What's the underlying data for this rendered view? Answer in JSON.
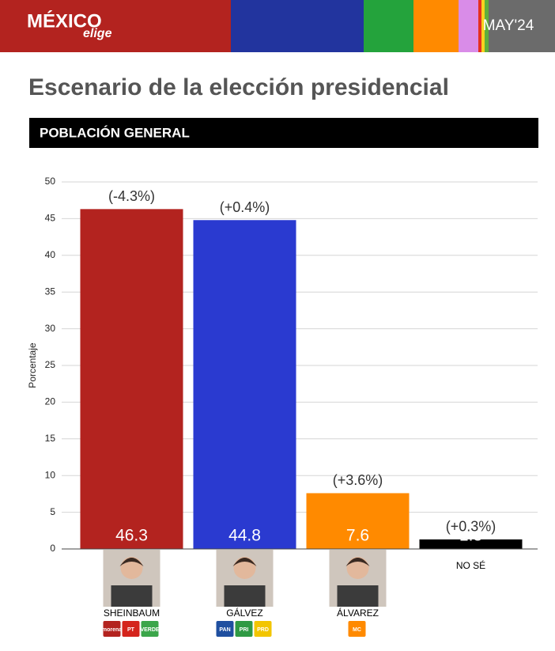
{
  "header": {
    "logo": "MÉXICO",
    "logo_sub": "elige",
    "date": "MAY'24"
  },
  "chart_data": {
    "type": "bar",
    "title": "Escenario de la elección presidencial",
    "subtitle": "POBLACIÓN GENERAL",
    "y_label": "Porcentaje",
    "categories": [
      "SHEINBAUM",
      "GÁLVEZ",
      "ÁLVAREZ",
      "NO SÉ"
    ],
    "values": [
      46.3,
      44.8,
      7.6,
      1.3
    ],
    "colors": [
      "#b3231f",
      "#2a3ad0",
      "#ff8a00",
      "#000000"
    ],
    "annotations": [
      "(-4.3%)",
      "(+0.4%)",
      "(+3.6%)",
      "(+0.3%)"
    ],
    "parties": [
      [
        "morena",
        "PT",
        "VERDE"
      ],
      [
        "PAN",
        "PRI",
        "PRD"
      ],
      [
        "MC"
      ]
    ],
    "ylim": [
      0,
      50
    ],
    "yticks": [
      0,
      5,
      10,
      15,
      20,
      25,
      30,
      35,
      40,
      45,
      50
    ],
    "grid": true
  }
}
